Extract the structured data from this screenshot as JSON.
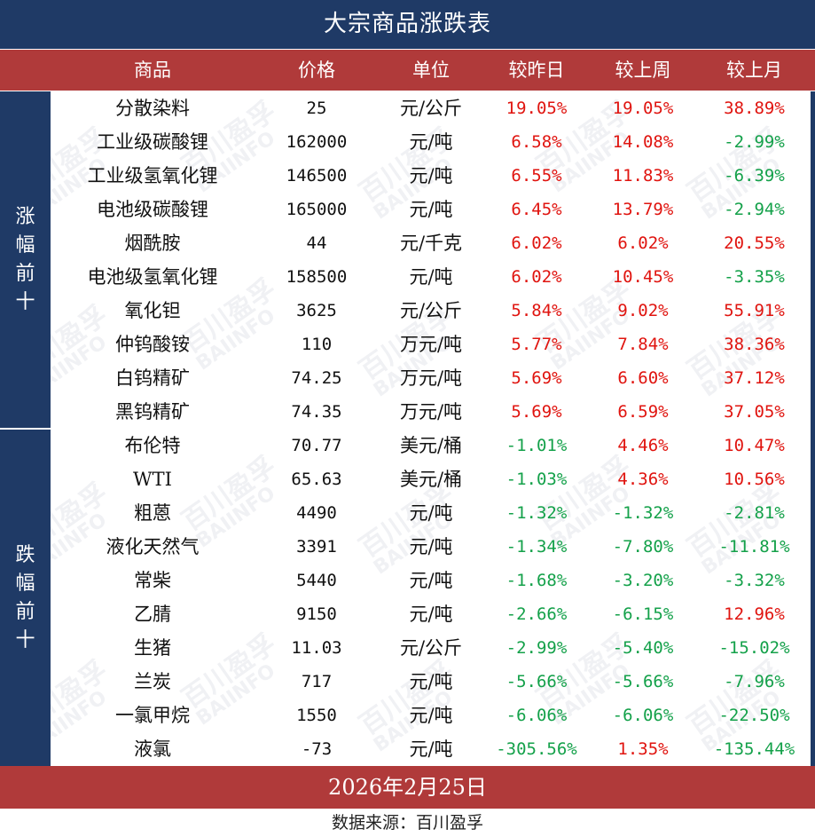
{
  "title": "大宗商品涨跌表",
  "columns": [
    "商品",
    "价格",
    "单位",
    "较昨日",
    "较上周",
    "较上月"
  ],
  "groups": {
    "top": "涨幅前十",
    "bottom": "跌幅前十"
  },
  "rows": [
    {
      "name": "分散染料",
      "price": "25",
      "unit": "元/公斤",
      "day": "19.05%",
      "week": "19.05%",
      "month": "38.89%"
    },
    {
      "name": "工业级碳酸锂",
      "price": "162000",
      "unit": "元/吨",
      "day": "6.58%",
      "week": "14.08%",
      "month": "-2.99%"
    },
    {
      "name": "工业级氢氧化锂",
      "price": "146500",
      "unit": "元/吨",
      "day": "6.55%",
      "week": "11.83%",
      "month": "-6.39%"
    },
    {
      "name": "电池级碳酸锂",
      "price": "165000",
      "unit": "元/吨",
      "day": "6.45%",
      "week": "13.79%",
      "month": "-2.94%"
    },
    {
      "name": "烟酰胺",
      "price": "44",
      "unit": "元/千克",
      "day": "6.02%",
      "week": "6.02%",
      "month": "20.55%"
    },
    {
      "name": "电池级氢氧化锂",
      "price": "158500",
      "unit": "元/吨",
      "day": "6.02%",
      "week": "10.45%",
      "month": "-3.35%"
    },
    {
      "name": "氧化钽",
      "price": "3625",
      "unit": "元/公斤",
      "day": "5.84%",
      "week": "9.02%",
      "month": "55.91%"
    },
    {
      "name": "仲钨酸铵",
      "price": "110",
      "unit": "万元/吨",
      "day": "5.77%",
      "week": "7.84%",
      "month": "38.36%"
    },
    {
      "name": "白钨精矿",
      "price": "74.25",
      "unit": "万元/吨",
      "day": "5.69%",
      "week": "6.60%",
      "month": "37.12%"
    },
    {
      "name": "黑钨精矿",
      "price": "74.35",
      "unit": "万元/吨",
      "day": "5.69%",
      "week": "6.59%",
      "month": "37.05%"
    },
    {
      "name": "布伦特",
      "price": "70.77",
      "unit": "美元/桶",
      "day": "-1.01%",
      "week": "4.46%",
      "month": "10.47%"
    },
    {
      "name": "WTI",
      "price": "65.63",
      "unit": "美元/桶",
      "day": "-1.03%",
      "week": "4.36%",
      "month": "10.56%"
    },
    {
      "name": "粗蒽",
      "price": "4490",
      "unit": "元/吨",
      "day": "-1.32%",
      "week": "-1.32%",
      "month": "-2.81%"
    },
    {
      "name": "液化天然气",
      "price": "3391",
      "unit": "元/吨",
      "day": "-1.34%",
      "week": "-7.80%",
      "month": "-11.81%"
    },
    {
      "name": "常柴",
      "price": "5440",
      "unit": "元/吨",
      "day": "-1.68%",
      "week": "-3.20%",
      "month": "-3.32%"
    },
    {
      "name": "乙腈",
      "price": "9150",
      "unit": "元/吨",
      "day": "-2.66%",
      "week": "-6.15%",
      "month": "12.96%"
    },
    {
      "name": "生猪",
      "price": "11.03",
      "unit": "元/公斤",
      "day": "-2.99%",
      "week": "-5.40%",
      "month": "-15.02%"
    },
    {
      "name": "兰炭",
      "price": "717",
      "unit": "元/吨",
      "day": "-5.66%",
      "week": "-5.66%",
      "month": "-7.96%"
    },
    {
      "name": "一氯甲烷",
      "price": "1550",
      "unit": "元/吨",
      "day": "-6.06%",
      "week": "-6.06%",
      "month": "-22.50%"
    },
    {
      "name": "液氯",
      "price": "-73",
      "unit": "元/吨",
      "day": "-305.56%",
      "week": "1.35%",
      "month": "-135.44%"
    }
  ],
  "date": "2026年2月25日",
  "source": "数据来源：百川盈孚",
  "watermark": {
    "cn": "百川盈孚",
    "en": "BAIINFO"
  },
  "colors": {
    "navy": "#1f3a66",
    "header_red": "#b03a3a",
    "up": "#e0140f",
    "down": "#14a14a"
  }
}
